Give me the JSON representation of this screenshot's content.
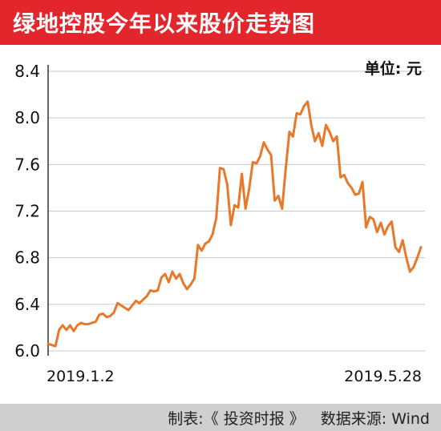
{
  "header": {
    "title": "绿地控股今年以来股价走势图"
  },
  "chart_data": {
    "type": "line",
    "title": "绿地控股今年以来股价走势图",
    "unit_label": "单位: 元",
    "ylim": [
      6.0,
      8.4
    ],
    "y_ticks": [
      "8.4",
      "8.0",
      "7.6",
      "7.2",
      "6.8",
      "6.4",
      "6.0"
    ],
    "x_start_label": "2019.1.2",
    "x_end_label": "2019.5.28",
    "grid": "horizontal",
    "line_color": "#e8782a",
    "series": [
      {
        "values": [
          6.06,
          6.05,
          6.04,
          6.18,
          6.22,
          6.18,
          6.22,
          6.17,
          6.22,
          6.24,
          6.23,
          6.23,
          6.24,
          6.25,
          6.31,
          6.32,
          6.29,
          6.3,
          6.33,
          6.41,
          6.39,
          6.37,
          6.35,
          6.39,
          6.43,
          6.41,
          6.44,
          6.47,
          6.52,
          6.51,
          6.52,
          6.63,
          6.66,
          6.59,
          6.68,
          6.62,
          6.66,
          6.58,
          6.53,
          6.57,
          6.62,
          6.91,
          6.86,
          6.92,
          6.94,
          7.0,
          7.14,
          7.57,
          7.56,
          7.43,
          7.08,
          7.25,
          7.23,
          7.52,
          7.22,
          7.39,
          7.62,
          7.61,
          7.67,
          7.79,
          7.73,
          7.68,
          7.29,
          7.33,
          7.22,
          7.56,
          7.88,
          7.84,
          8.04,
          8.03,
          8.1,
          8.14,
          7.94,
          7.8,
          7.87,
          7.76,
          7.94,
          7.88,
          7.8,
          7.84,
          7.49,
          7.51,
          7.44,
          7.4,
          7.34,
          7.35,
          7.45,
          7.06,
          7.15,
          7.13,
          7.02,
          7.1,
          7.0,
          7.07,
          7.11,
          6.89,
          6.85,
          6.95,
          6.8,
          6.68,
          6.72,
          6.8,
          6.89
        ]
      }
    ]
  },
  "footer": {
    "label": "制表:《 投资时报 》",
    "source": "数据来源: Wind"
  }
}
